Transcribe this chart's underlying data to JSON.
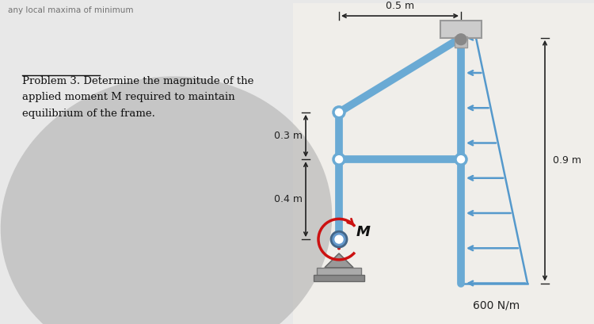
{
  "bg_color": "#e8e8e8",
  "paper_color": "#f0eeea",
  "frame_color": "#6aaad4",
  "frame_lw": 7,
  "title_line1": "Problem 3. Determine the magnitude of the",
  "title_line2": "applied moment M required to maintain",
  "title_line3": "equilibrium of the frame.",
  "dim_03": "0.3 m",
  "dim_04": "0.4 m",
  "dim_05": "0.5 m",
  "dim_09": "0.9 m",
  "load_label": "600 N/m",
  "moment_label": "M",
  "arrow_color": "#5599cc",
  "dim_color": "#222222",
  "text_color": "#111111",
  "shadow_color": "#aaaaaa"
}
